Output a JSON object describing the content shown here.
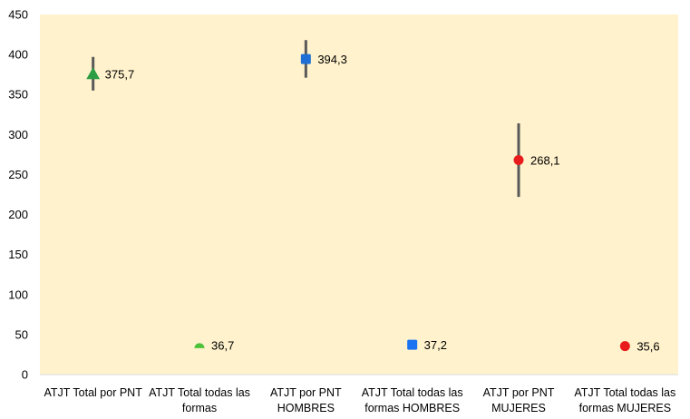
{
  "chart_data": {
    "type": "scatter",
    "title": "",
    "xlabel": "",
    "ylabel": "",
    "ylim": [
      0,
      450
    ],
    "yticks": [
      0,
      50,
      100,
      150,
      200,
      250,
      300,
      350,
      400,
      450
    ],
    "grid": false,
    "legend": "none",
    "plot_background": "#FFF2CC",
    "error_bar_color": "#595959",
    "categories": [
      {
        "lines": [
          "ATJT Total por PNT"
        ]
      },
      {
        "lines": [
          "ATJT Total todas las",
          "formas"
        ]
      },
      {
        "lines": [
          "ATJT por PNT",
          "HOMBRES"
        ]
      },
      {
        "lines": [
          "ATJT Total todas las",
          "formas HOMBRES"
        ]
      },
      {
        "lines": [
          "ATJT por PNT",
          "MUJERES"
        ]
      },
      {
        "lines": [
          "ATJT Total todas las",
          "formas MUJERES"
        ]
      }
    ],
    "points": [
      {
        "category_index": 0,
        "value": 375.7,
        "label": "375,7",
        "marker": "triangle",
        "color": "#2E9E45",
        "error_low": 355,
        "error_high": 397
      },
      {
        "category_index": 1,
        "value": 36.7,
        "label": "36,7",
        "marker": "semicircle",
        "color": "#4CC13A"
      },
      {
        "category_index": 2,
        "value": 394.3,
        "label": "394,3",
        "marker": "square",
        "color": "#1F6FD6",
        "error_low": 371,
        "error_high": 418
      },
      {
        "category_index": 3,
        "value": 37.2,
        "label": "37,2",
        "marker": "square",
        "color": "#1A73F0"
      },
      {
        "category_index": 4,
        "value": 268.1,
        "label": "268,1",
        "marker": "circle",
        "color": "#E81C1C",
        "error_low": 222,
        "error_high": 314
      },
      {
        "category_index": 5,
        "value": 35.6,
        "label": "35,6",
        "marker": "circle",
        "color": "#E81C1C"
      }
    ]
  }
}
